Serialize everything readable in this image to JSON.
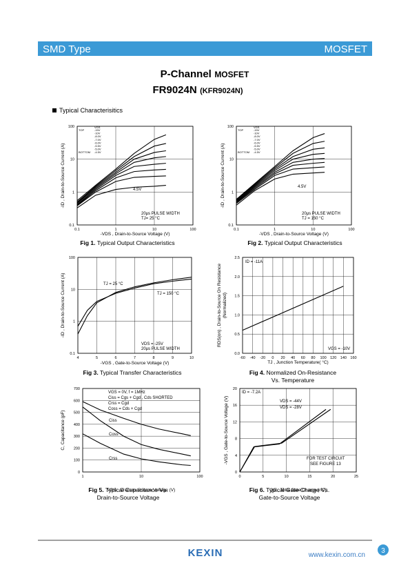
{
  "header": {
    "left": "SMD Type",
    "right": "MOSFET"
  },
  "title": {
    "line1a": "P-Channel",
    "line1b": "MOSFET",
    "line2a": "FR9024N",
    "line2b": "(KFR9024N)"
  },
  "section": "Typical  Characterisitics",
  "chart_data": [
    {
      "type": "line",
      "label": "Fig 1.",
      "caption": [
        "Typical Output Characteristics"
      ],
      "ylabel": "-ID , Drain-to-Source Current (A)",
      "xlabel": "-VDS , Drain-to-Source Voltage (V)",
      "xscale": "log",
      "yscale": "log",
      "xlim": [
        0.1,
        100
      ],
      "ylim": [
        0.1,
        100
      ],
      "xticks": [
        0.1,
        1,
        10,
        100
      ],
      "yticks": [
        0.1,
        1,
        10,
        100
      ],
      "grid": true,
      "legend_title": "VGS",
      "legend_top": "TOP",
      "legend_bottom": "BOTTOM",
      "annotations": [
        "20μs PULSE WIDTH",
        "TJ= 25 °C",
        "4.5V"
      ],
      "x": [
        0.1,
        0.3,
        1,
        3,
        10,
        20
      ],
      "series": [
        {
          "name": "-15V",
          "color": "#000000",
          "values": [
            0.55,
            1.6,
            5,
            15,
            40,
            55
          ]
        },
        {
          "name": "-10V",
          "color": "#000000",
          "values": [
            0.5,
            1.5,
            4.5,
            12,
            25,
            30
          ]
        },
        {
          "name": "-8.0V",
          "color": "#000000",
          "values": [
            0.48,
            1.4,
            4,
            10,
            16,
            18
          ]
        },
        {
          "name": "-7.0V",
          "color": "#000000",
          "values": [
            0.45,
            1.3,
            3.6,
            8,
            11,
            12
          ]
        },
        {
          "name": "-6.0V",
          "color": "#000000",
          "values": [
            0.42,
            1.2,
            3.2,
            6,
            7,
            7.5
          ]
        },
        {
          "name": "-5.5V",
          "color": "#000000",
          "values": [
            0.4,
            1.1,
            2.7,
            4.2,
            4.7,
            4.9
          ]
        },
        {
          "name": "-5.0V",
          "color": "#000000",
          "values": [
            0.38,
            1,
            2.1,
            2.8,
            3,
            3.1
          ]
        },
        {
          "name": "-4.5V",
          "color": "#000000",
          "values": [
            0.33,
            0.8,
            1.2,
            1.4,
            1.5,
            1.6
          ]
        }
      ]
    },
    {
      "type": "line",
      "label": "Fig 2.",
      "caption": [
        "Typical Output Characteristics"
      ],
      "ylabel": "-ID , Drain-to-Source Current (A)",
      "xlabel": "-VDS , Drain-to-Source Voltage (V)",
      "xscale": "log",
      "yscale": "log",
      "xlim": [
        0.1,
        100
      ],
      "ylim": [
        0.1,
        100
      ],
      "xticks": [
        0.1,
        1,
        10,
        100
      ],
      "yticks": [
        0.1,
        1,
        10,
        100
      ],
      "grid": true,
      "legend_title": "VGS",
      "legend_top": "TOP",
      "legend_bottom": "BOTTOM",
      "annotations": [
        "20μs PULSE WIDTH",
        "TJ = 150 °C",
        "4.5V"
      ],
      "x": [
        0.1,
        0.3,
        1,
        3,
        10,
        20
      ],
      "series": [
        {
          "name": "-15V",
          "color": "#000000",
          "values": [
            0.6,
            1.8,
            6,
            18,
            45,
            60
          ]
        },
        {
          "name": "-10V",
          "color": "#000000",
          "values": [
            0.58,
            1.7,
            5.5,
            15,
            30,
            35
          ]
        },
        {
          "name": "-8.0V",
          "color": "#000000",
          "values": [
            0.55,
            1.6,
            5,
            12,
            20,
            22
          ]
        },
        {
          "name": "-7.0V",
          "color": "#000000",
          "values": [
            0.52,
            1.5,
            4.5,
            10,
            14,
            15
          ]
        },
        {
          "name": "-6.0V",
          "color": "#000000",
          "values": [
            0.5,
            1.4,
            4,
            8,
            10,
            10.5
          ]
        },
        {
          "name": "-5.5V",
          "color": "#000000",
          "values": [
            0.48,
            1.3,
            3.6,
            6.5,
            7.5,
            8
          ]
        },
        {
          "name": "-5.0V",
          "color": "#000000",
          "values": [
            0.45,
            1.2,
            3.2,
            5,
            5.5,
            5.8
          ]
        },
        {
          "name": "-4.5V",
          "color": "#000000",
          "values": [
            0.4,
            1.1,
            2.5,
            3.5,
            3.8,
            4
          ]
        }
      ]
    },
    {
      "type": "line",
      "label": "Fig 3.",
      "caption": [
        "Typical Transfer Characteristics"
      ],
      "ylabel": "-ID , Drain-to-Source Current (A)",
      "xlabel": "-VGS , Gate-to-Source Voltage (V)",
      "yscale": "log",
      "xlim": [
        4,
        10
      ],
      "ylim": [
        0.1,
        100
      ],
      "xticks": [
        4,
        5,
        6,
        7,
        8,
        9,
        10
      ],
      "yticks": [
        0.1,
        1,
        10,
        100
      ],
      "grid": true,
      "annotations": [
        "VDS = -25V",
        "20μs PULSE WIDTH"
      ],
      "x": [
        4,
        4.5,
        5,
        6,
        7,
        8,
        9,
        10
      ],
      "series": [
        {
          "name": "TJ = 25 °C",
          "color": "#000000",
          "values": [
            0.4,
            1.5,
            3.8,
            8,
            12,
            16,
            20,
            24
          ]
        },
        {
          "name": "TJ = 150 °C",
          "color": "#000000",
          "values": [
            0.7,
            2.2,
            4.2,
            7.5,
            11,
            15,
            18,
            21
          ]
        }
      ]
    },
    {
      "type": "line",
      "label": "Fig 4.",
      "caption": [
        "Normalized On-Resistance",
        "Vs. Temperature"
      ],
      "ylabel": [
        "RDS(on) , Drain-to-Source On Resistance",
        "(Normalized)"
      ],
      "xlabel": "TJ , Junction Temperature( °C)",
      "xlim": [
        -60,
        160
      ],
      "ylim": [
        0,
        2.5
      ],
      "xticks": [
        -60,
        -40,
        -20,
        0,
        20,
        40,
        60,
        80,
        100,
        120,
        140,
        160
      ],
      "yticks": [
        {
          "value": 0,
          "label": "0.0"
        },
        0.5,
        {
          "value": 1,
          "label": "1.0"
        },
        1.5,
        {
          "value": 2,
          "label": "2.0"
        },
        2.5
      ],
      "grid": true,
      "annotations": [
        "ID = -11A",
        "VGS = -10V"
      ],
      "x": [
        -60,
        140
      ],
      "series": [
        {
          "name": null,
          "color": "#000000",
          "values": [
            0.6,
            1.75
          ]
        }
      ]
    },
    {
      "type": "line",
      "label": "Fig 5.",
      "caption": [
        "Typical Capacitance Vs.",
        "Drain-to-Source Voltage"
      ],
      "ylabel": "C, Capacitance (pF)",
      "xlabel": "VDS , Drain-to-Source Voltage (V)",
      "xscale": "log",
      "xlim": [
        1,
        100
      ],
      "ylim": [
        0,
        700
      ],
      "xticks": [
        1,
        10,
        100
      ],
      "yticks": [
        0,
        100,
        200,
        300,
        400,
        500,
        600,
        700
      ],
      "grid": true,
      "annotations": [
        "VGS = 0V,        f = 1MHz",
        "Ciss = Cgs + Cgd ,  Cds  SHORTED",
        "Crss = Cgd",
        "Coss = Cds + Cgd"
      ],
      "x": [
        1,
        2,
        5,
        10,
        20,
        50,
        70
      ],
      "series": [
        {
          "name": "Ciss",
          "color": "#000000",
          "values": [
            590,
            520,
            450,
            400,
            360,
            320,
            305
          ]
        },
        {
          "name": "Coss",
          "color": "#000000",
          "values": [
            545,
            430,
            300,
            230,
            190,
            150,
            135
          ]
        },
        {
          "name": "Crss",
          "color": "#000000",
          "values": [
            320,
            240,
            150,
            110,
            85,
            60,
            55
          ]
        }
      ]
    },
    {
      "type": "line",
      "label": "Fig 6.",
      "caption": [
        "Typical Gate Charge Vs.",
        "Gate-to-Source Voltage"
      ],
      "ylabel": "-VGS , Gate-to-Source Voltage (V)",
      "xlabel": "QG , Total Gate Charge (nC)",
      "xlim": [
        0,
        25
      ],
      "ylim": [
        0,
        20
      ],
      "xticks": [
        0,
        5,
        10,
        15,
        20,
        25
      ],
      "yticks": [
        0,
        4,
        8,
        12,
        16,
        20
      ],
      "grid": true,
      "annotations": [
        "ID = -7.2A",
        "FOR TEST CIRCUIT",
        "SEE FIGURE 13"
      ],
      "series": [
        {
          "name": "VDS = -44V",
          "color": "#000000",
          "x": [
            0,
            3.2,
            9,
            19.5
          ],
          "values": [
            0,
            6.1,
            6.9,
            15
          ]
        },
        {
          "name": "VDS = -28V",
          "color": "#000000",
          "x": [
            0,
            3,
            8.5,
            18.5
          ],
          "values": [
            0,
            6,
            6.7,
            15
          ]
        }
      ]
    }
  ],
  "footer": {
    "logo": "KEXIN",
    "url": "www.kexin.com.cn",
    "page": "3"
  }
}
